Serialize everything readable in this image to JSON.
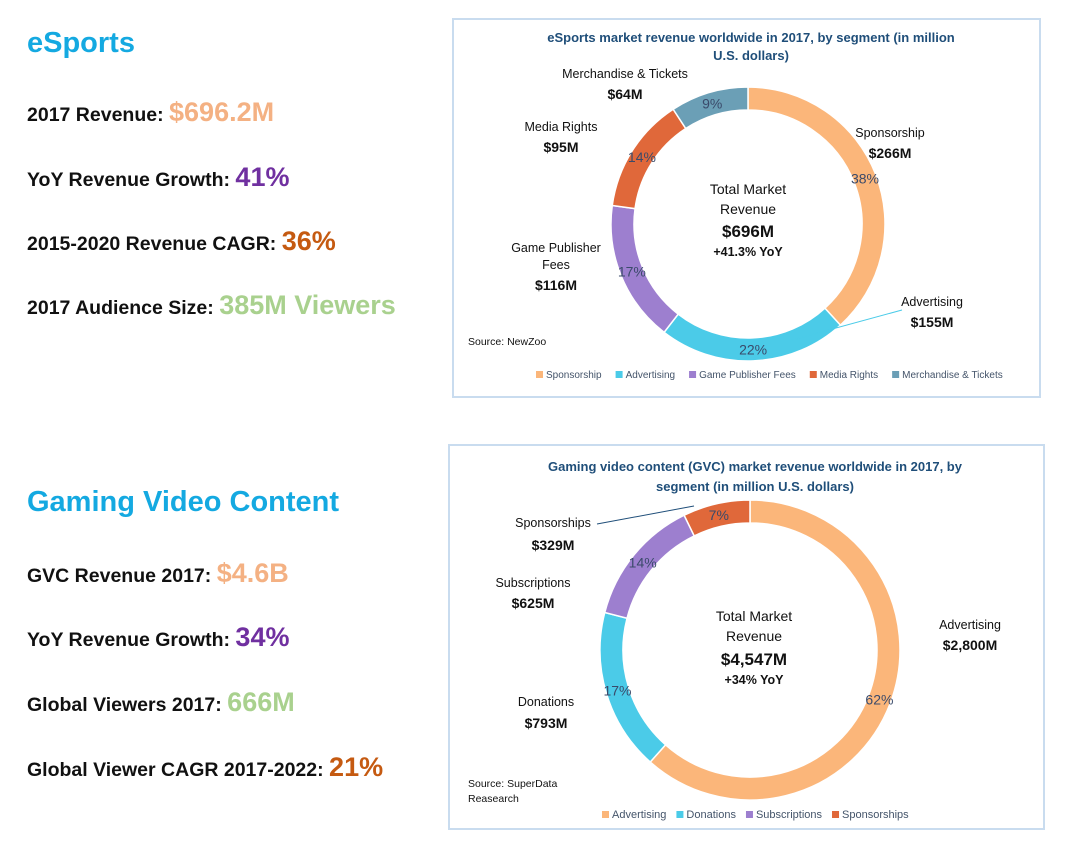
{
  "esports": {
    "heading": "eSports",
    "stats": [
      {
        "label": "2017 Revenue",
        "sep": ": ",
        "value": "$696.2M"
      },
      {
        "label": "YoY Revenue Growth",
        "sep": ": ",
        "value": "41%"
      },
      {
        "label": "2015-2020 Revenue CAGR",
        "sep": ": ",
        "value": "36%"
      },
      {
        "label": "2017 Audience Size",
        "sep": ": ",
        "value": "385M Viewers"
      }
    ]
  },
  "gvc": {
    "heading": "Gaming Video Content",
    "stats": [
      {
        "label": "GVC Revenue 2017",
        "sep": ": ",
        "value": "$4.6B"
      },
      {
        "label": "YoY Revenue Growth",
        "sep": ": ",
        "value": "34%"
      },
      {
        "label": "Global Viewers 2017",
        "sep": ": ",
        "value": "666M"
      },
      {
        "label": "Global Viewer CAGR 2017-2022",
        "sep": ": ",
        "value": "21%"
      }
    ]
  },
  "colors": {
    "orange": "#f79646",
    "orange_light": "#fbb67a",
    "cyan": "#4bcbe8",
    "purple": "#9d7fcf",
    "rust": "#e0683a",
    "teal": "#6b9fb6",
    "heading_blue": "#14a9e1"
  },
  "chart_data": [
    {
      "type": "pie",
      "donut": true,
      "title_line1": "eSports market revenue worldwide in 2017, by segment (in million",
      "title_line2": "U.S. dollars)",
      "categories": [
        "Sponsorship",
        "Advertising",
        "Game Publisher Fees",
        "Media Rights",
        "Merchandise & Tickets"
      ],
      "values": [
        266,
        155,
        116,
        95,
        64
      ],
      "percent_labels": [
        "38%",
        "22%",
        "17%",
        "14%",
        "9%"
      ],
      "value_labels": [
        "$266M",
        "$155M",
        "$116M",
        "$95M",
        "$64M"
      ],
      "callout_labels": [
        "Sponsorship",
        "Advertising",
        "Game Publisher Fees",
        "Media Rights",
        "Merchandise & Tickets"
      ],
      "center_line1": "Total Market",
      "center_line2": "Revenue",
      "center_value": "$696M",
      "center_sub": "+41.3% YoY",
      "source": "Source: NewZoo",
      "legend": [
        "Sponsorship",
        "Advertising",
        "Game Publisher Fees",
        "Media Rights",
        "Merchandise & Tickets"
      ],
      "legend_position": "bottom"
    },
    {
      "type": "pie",
      "donut": true,
      "title_line1": "Gaming video content (GVC) market revenue worldwide in 2017, by",
      "title_line2": "segment (in million U.S. dollars)",
      "categories": [
        "Advertising",
        "Donations",
        "Subscriptions",
        "Sponsorships"
      ],
      "values": [
        2800,
        793,
        625,
        329
      ],
      "percent_labels": [
        "62%",
        "17%",
        "14%",
        "7%"
      ],
      "value_labels": [
        "$2,800M",
        "$793M",
        "$625M",
        "$329M"
      ],
      "callout_labels": [
        "Advertising",
        "Donations",
        "Subscriptions",
        "Sponsorships"
      ],
      "center_line1": "Total Market",
      "center_line2": "Revenue",
      "center_value": "$4,547M",
      "center_sub": "+34% YoY",
      "source_line1": "Source: SuperData",
      "source_line2": "Reasearch",
      "legend": [
        "Advertising",
        "Donations",
        "Subscriptions",
        "Sponsorships"
      ],
      "legend_position": "bottom"
    }
  ]
}
